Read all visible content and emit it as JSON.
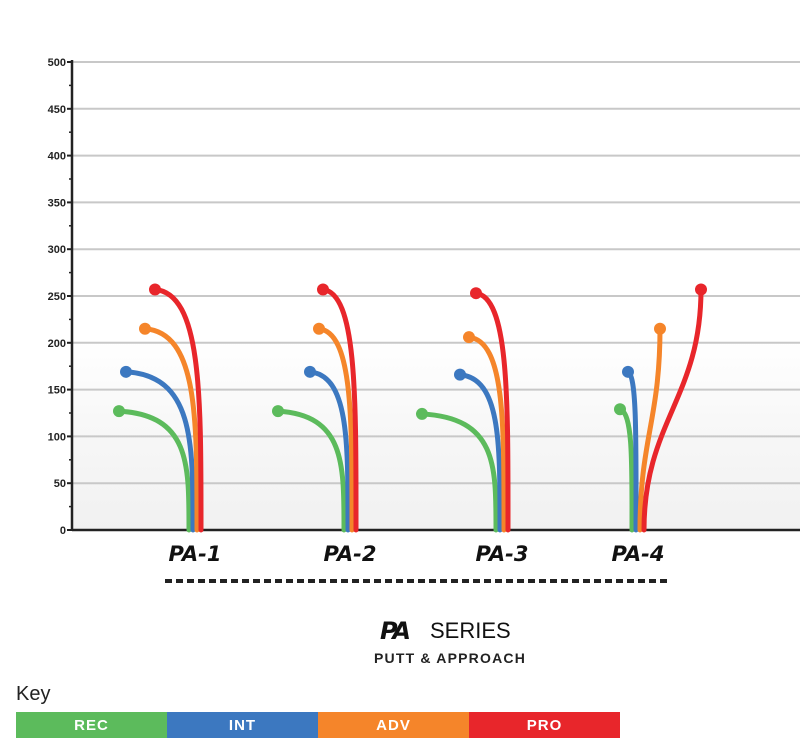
{
  "chart_data": {
    "type": "line",
    "ylim": [
      0,
      500
    ],
    "y_ticks": [
      "500",
      "450",
      "400",
      "350",
      "300",
      "250",
      "200",
      "150",
      "100",
      "50",
      "0"
    ],
    "grid": true,
    "categories": [
      "PA-1",
      "PA-2",
      "PA-3",
      "PA-4"
    ],
    "series": [
      {
        "name": "REC",
        "color": "#5cbb5c",
        "values": [
          127,
          127,
          124,
          129
        ]
      },
      {
        "name": "INT",
        "color": "#3c78c0",
        "values": [
          169,
          169,
          166,
          169
        ]
      },
      {
        "name": "ADV",
        "color": "#f5852a",
        "values": [
          215,
          215,
          206,
          215
        ]
      },
      {
        "name": "PRO",
        "color": "#e8262b",
        "values": [
          257,
          257,
          253,
          257
        ]
      }
    ]
  },
  "footer": {
    "brand_mark": "PA",
    "brand_series": "SERIES",
    "subtitle": "PUTT & APPROACH"
  },
  "key": {
    "title": "Key",
    "items": [
      {
        "label": "REC",
        "color": "#5cbb5c"
      },
      {
        "label": "INT",
        "color": "#3c78c0"
      },
      {
        "label": "ADV",
        "color": "#f5852a"
      },
      {
        "label": "PRO",
        "color": "#e8262b"
      }
    ]
  }
}
